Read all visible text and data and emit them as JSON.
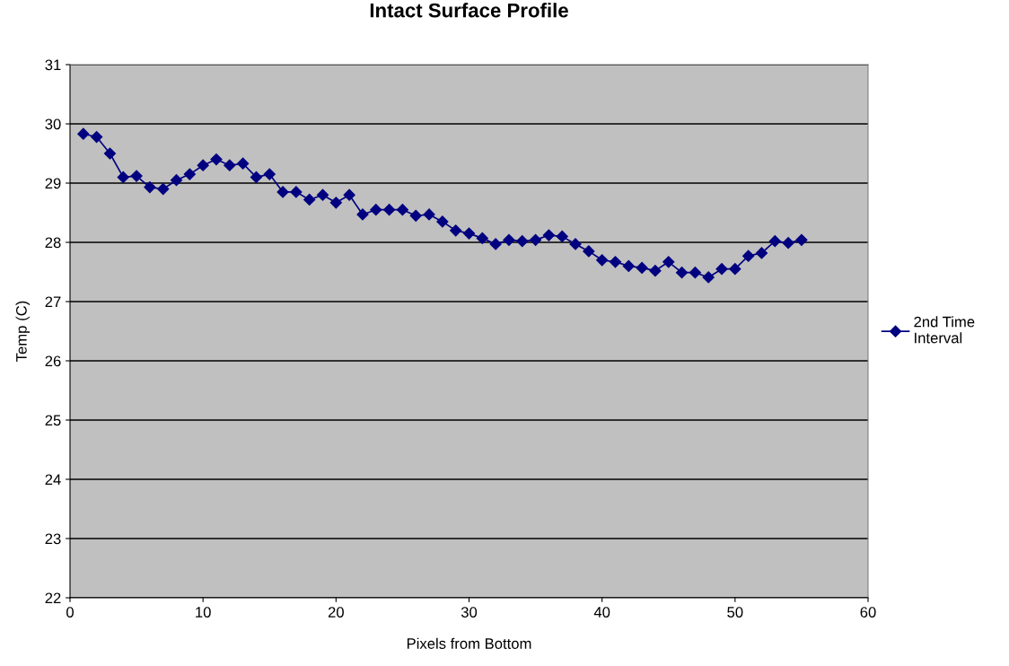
{
  "chart_data": {
    "type": "line",
    "title": "Intact Surface Profile",
    "xlabel": "Pixels from Bottom",
    "ylabel": "Temp (C)",
    "x": [
      1,
      2,
      3,
      4,
      5,
      6,
      7,
      8,
      9,
      10,
      11,
      12,
      13,
      14,
      15,
      16,
      17,
      18,
      19,
      20,
      21,
      22,
      23,
      24,
      25,
      26,
      27,
      28,
      29,
      30,
      31,
      32,
      33,
      34,
      35,
      36,
      37,
      38,
      39,
      40,
      41,
      42,
      43,
      44,
      45,
      46,
      47,
      48,
      49,
      50,
      51,
      52,
      53,
      54,
      55
    ],
    "series": [
      {
        "name": "2nd Time Interval",
        "color": "#000080",
        "values": [
          29.83,
          29.78,
          29.5,
          29.1,
          29.12,
          28.93,
          28.9,
          29.05,
          29.15,
          29.3,
          29.4,
          29.3,
          29.33,
          29.1,
          29.15,
          28.85,
          28.85,
          28.72,
          28.8,
          28.67,
          28.8,
          28.47,
          28.55,
          28.55,
          28.55,
          28.45,
          28.47,
          28.35,
          28.2,
          28.15,
          28.07,
          27.97,
          28.04,
          28.02,
          28.04,
          28.12,
          28.1,
          27.97,
          27.85,
          27.7,
          27.67,
          27.6,
          27.57,
          27.52,
          27.67,
          27.49,
          27.49,
          27.41,
          27.55,
          27.55,
          27.77,
          27.82,
          28.02,
          27.99,
          28.04
        ]
      }
    ],
    "xlim": [
      0,
      60
    ],
    "xticks": [
      0,
      10,
      20,
      30,
      40,
      50,
      60
    ],
    "ylim": [
      22,
      31
    ],
    "yticks": [
      22,
      23,
      24,
      25,
      26,
      27,
      28,
      29,
      30,
      31
    ],
    "grid": "y",
    "legend": "right",
    "marker": "diamond",
    "line_style": "solid"
  }
}
